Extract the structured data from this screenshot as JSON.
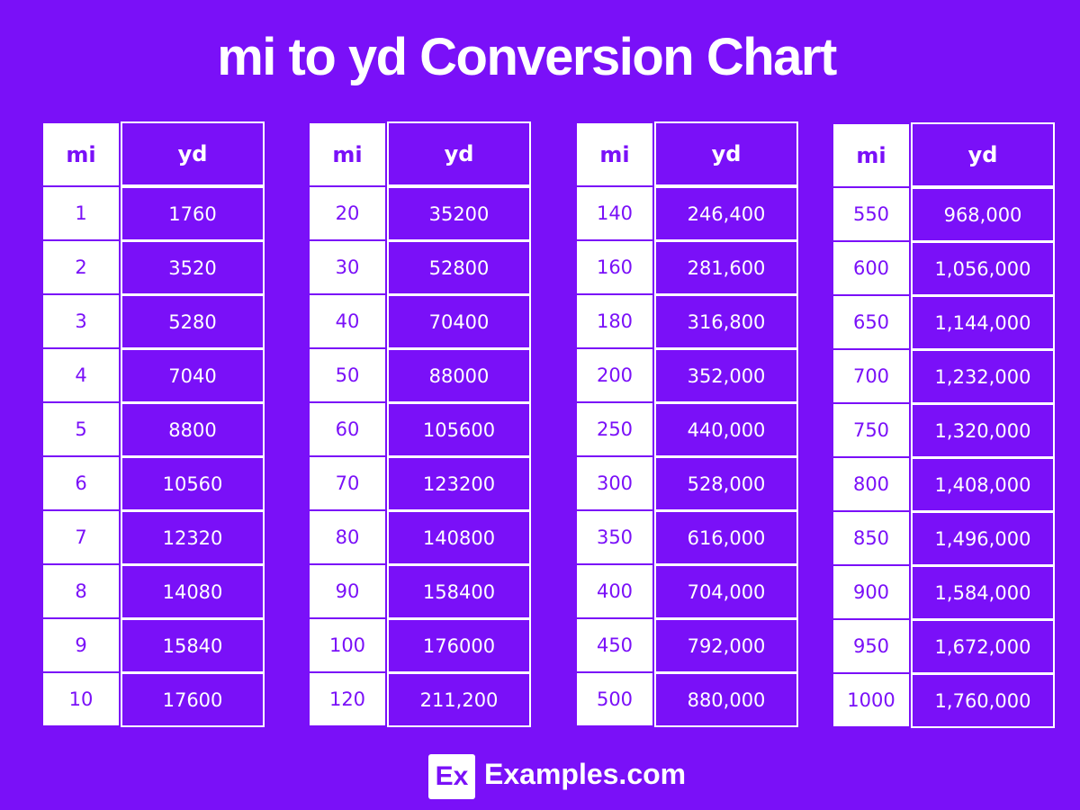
{
  "title": "mi to yd Conversion Chart",
  "tables": [
    {
      "header": [
        "mi",
        "yd"
      ],
      "rows": [
        [
          "1",
          "1760"
        ],
        [
          "2",
          "3520"
        ],
        [
          "3",
          "5280"
        ],
        [
          "4",
          "7040"
        ],
        [
          "5",
          "8800"
        ],
        [
          "6",
          "10560"
        ],
        [
          "7",
          "12320"
        ],
        [
          "8",
          "14080"
        ],
        [
          "9",
          "15840"
        ],
        [
          "10",
          "17600"
        ]
      ]
    },
    {
      "header": [
        "mi",
        "yd"
      ],
      "rows": [
        [
          "20",
          "35200"
        ],
        [
          "30",
          "52800"
        ],
        [
          "40",
          "70400"
        ],
        [
          "50",
          "88000"
        ],
        [
          "60",
          "105600"
        ],
        [
          "70",
          "123200"
        ],
        [
          "80",
          "140800"
        ],
        [
          "90",
          "158400"
        ],
        [
          "100",
          "176000"
        ],
        [
          "120",
          "211,200"
        ]
      ]
    },
    {
      "header": [
        "mi",
        "yd"
      ],
      "rows": [
        [
          "140",
          "246,400"
        ],
        [
          "160",
          "281,600"
        ],
        [
          "180",
          "316,800"
        ],
        [
          "200",
          "352,000"
        ],
        [
          "250",
          "440,000"
        ],
        [
          "300",
          "528,000"
        ],
        [
          "350",
          "616,000"
        ],
        [
          "400",
          "704,000"
        ],
        [
          "450",
          "792,000"
        ],
        [
          "500",
          "880,000"
        ]
      ]
    },
    {
      "header": [
        "mi",
        "yd"
      ],
      "rows": [
        [
          "550",
          "968,000"
        ],
        [
          "600",
          "1,056,000"
        ],
        [
          "650",
          "1,144,000"
        ],
        [
          "700",
          "1,232,000"
        ],
        [
          "750",
          "1,320,000"
        ],
        [
          "800",
          "1,408,000"
        ],
        [
          "850",
          "1,496,000"
        ],
        [
          "900",
          "1,584,000"
        ],
        [
          "950",
          "1,672,000"
        ],
        [
          "1000",
          "1,760,000"
        ]
      ]
    }
  ],
  "footer": {
    "logo": "Ex",
    "site": "Examples.com"
  }
}
